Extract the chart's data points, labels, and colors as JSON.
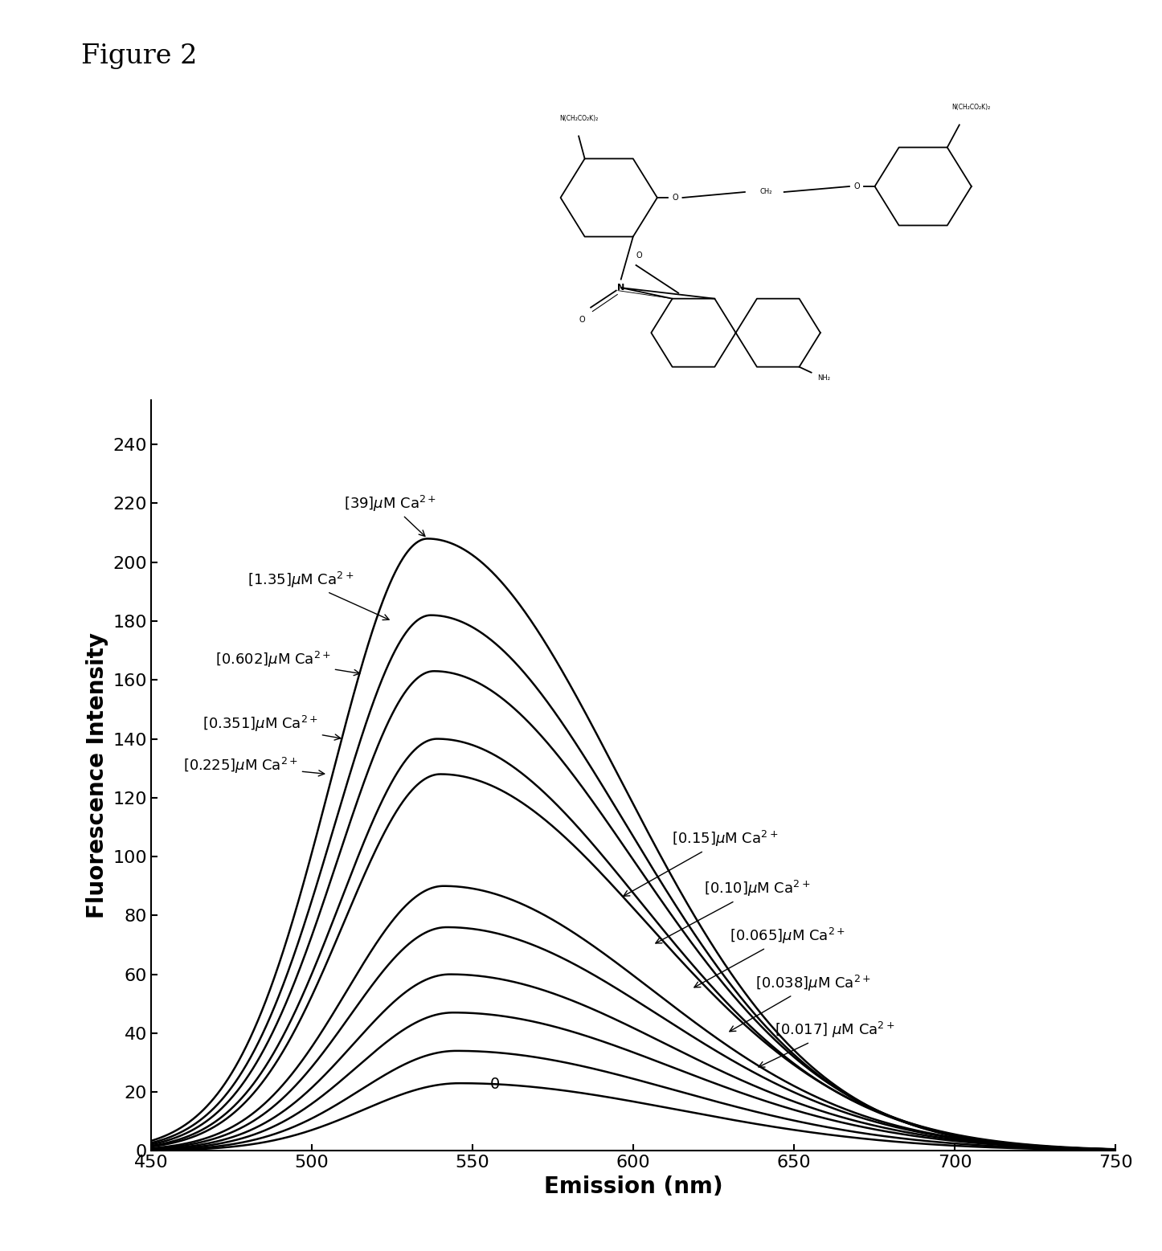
{
  "title": "Figure 2",
  "xlabel": "Emission (nm)",
  "ylabel": "Fluorescence Intensity",
  "xlim": [
    450,
    750
  ],
  "ylim": [
    0,
    255
  ],
  "yticks": [
    0,
    20,
    40,
    60,
    80,
    100,
    120,
    140,
    160,
    180,
    200,
    220,
    240
  ],
  "xticks": [
    450,
    500,
    550,
    600,
    650,
    700,
    750
  ],
  "curves": [
    {
      "label": "0",
      "peak_x": 546,
      "peak_y": 23,
      "sigma_l": 30,
      "sigma_r": 68
    },
    {
      "label": "[0.017]",
      "peak_x": 545,
      "peak_y": 34,
      "sigma_l": 30,
      "sigma_r": 68
    },
    {
      "label": "[0.038]",
      "peak_x": 544,
      "peak_y": 47,
      "sigma_l": 30,
      "sigma_r": 68
    },
    {
      "label": "[0.065]",
      "peak_x": 543,
      "peak_y": 60,
      "sigma_l": 30,
      "sigma_r": 67
    },
    {
      "label": "[0.10]",
      "peak_x": 542,
      "peak_y": 76,
      "sigma_l": 30,
      "sigma_r": 66
    },
    {
      "label": "[0.15]",
      "peak_x": 541,
      "peak_y": 90,
      "sigma_l": 30,
      "sigma_r": 65
    },
    {
      "label": "[0.225]",
      "peak_x": 540,
      "peak_y": 128,
      "sigma_l": 30,
      "sigma_r": 64
    },
    {
      "label": "[0.351]",
      "peak_x": 539,
      "peak_y": 140,
      "sigma_l": 30,
      "sigma_r": 63
    },
    {
      "label": "[0.602]",
      "peak_x": 538,
      "peak_y": 163,
      "sigma_l": 30,
      "sigma_r": 62
    },
    {
      "label": "[1.35]",
      "peak_x": 537,
      "peak_y": 182,
      "sigma_l": 30,
      "sigma_r": 61
    },
    {
      "label": "[39]",
      "peak_x": 536,
      "peak_y": 208,
      "sigma_l": 30,
      "sigma_r": 60
    }
  ],
  "background_color": "#ffffff",
  "line_color": "#000000",
  "line_width": 1.8,
  "figsize": [
    14.46,
    15.57
  ],
  "dpi": 100
}
